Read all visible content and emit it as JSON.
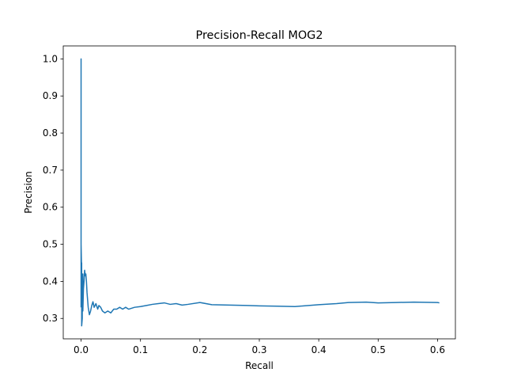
{
  "chart_data": {
    "type": "line",
    "title": "Precision-Recall MOG2",
    "xlabel": "Recall",
    "ylabel": "Precision",
    "xlim": [
      -0.03,
      0.63
    ],
    "ylim": [
      0.245,
      1.035
    ],
    "xticks": [
      0.0,
      0.1,
      0.2,
      0.3,
      0.4,
      0.5,
      0.6
    ],
    "xtick_labels": [
      "0.0",
      "0.1",
      "0.2",
      "0.3",
      "0.4",
      "0.5",
      "0.6"
    ],
    "yticks": [
      0.3,
      0.4,
      0.5,
      0.6,
      0.7,
      0.8,
      0.9,
      1.0
    ],
    "ytick_labels": [
      "0.3",
      "0.4",
      "0.5",
      "0.6",
      "0.7",
      "0.8",
      "0.9",
      "1.0"
    ],
    "grid": false,
    "legend": "none",
    "line_color": "#1f77b4",
    "series": [
      {
        "x": [
          0.0,
          0.0,
          0.0,
          0.0,
          0.001,
          0.001,
          0.001,
          0.001,
          0.002,
          0.002,
          0.003,
          0.003,
          0.004,
          0.005,
          0.006,
          0.007,
          0.008,
          0.009,
          0.01,
          0.011,
          0.012,
          0.014,
          0.016,
          0.018,
          0.02,
          0.022,
          0.025,
          0.028,
          0.03,
          0.033,
          0.036,
          0.04,
          0.045,
          0.05,
          0.055,
          0.06,
          0.065,
          0.07,
          0.075,
          0.08,
          0.09,
          0.1,
          0.11,
          0.12,
          0.13,
          0.14,
          0.15,
          0.16,
          0.17,
          0.18,
          0.2,
          0.22,
          0.25,
          0.28,
          0.3,
          0.33,
          0.36,
          0.4,
          0.43,
          0.45,
          0.48,
          0.5,
          0.53,
          0.56,
          0.6,
          0.603
        ],
        "y": [
          0.33,
          0.66,
          1.0,
          0.5,
          0.42,
          0.45,
          0.35,
          0.28,
          0.3,
          0.36,
          0.42,
          0.32,
          0.38,
          0.4,
          0.43,
          0.415,
          0.42,
          0.4,
          0.37,
          0.35,
          0.33,
          0.31,
          0.32,
          0.335,
          0.345,
          0.33,
          0.34,
          0.325,
          0.335,
          0.33,
          0.32,
          0.315,
          0.32,
          0.315,
          0.325,
          0.325,
          0.33,
          0.325,
          0.33,
          0.325,
          0.33,
          0.332,
          0.335,
          0.338,
          0.34,
          0.342,
          0.338,
          0.34,
          0.336,
          0.338,
          0.343,
          0.337,
          0.336,
          0.335,
          0.334,
          0.333,
          0.332,
          0.337,
          0.34,
          0.343,
          0.344,
          0.342,
          0.343,
          0.344,
          0.343,
          0.342
        ]
      }
    ]
  }
}
